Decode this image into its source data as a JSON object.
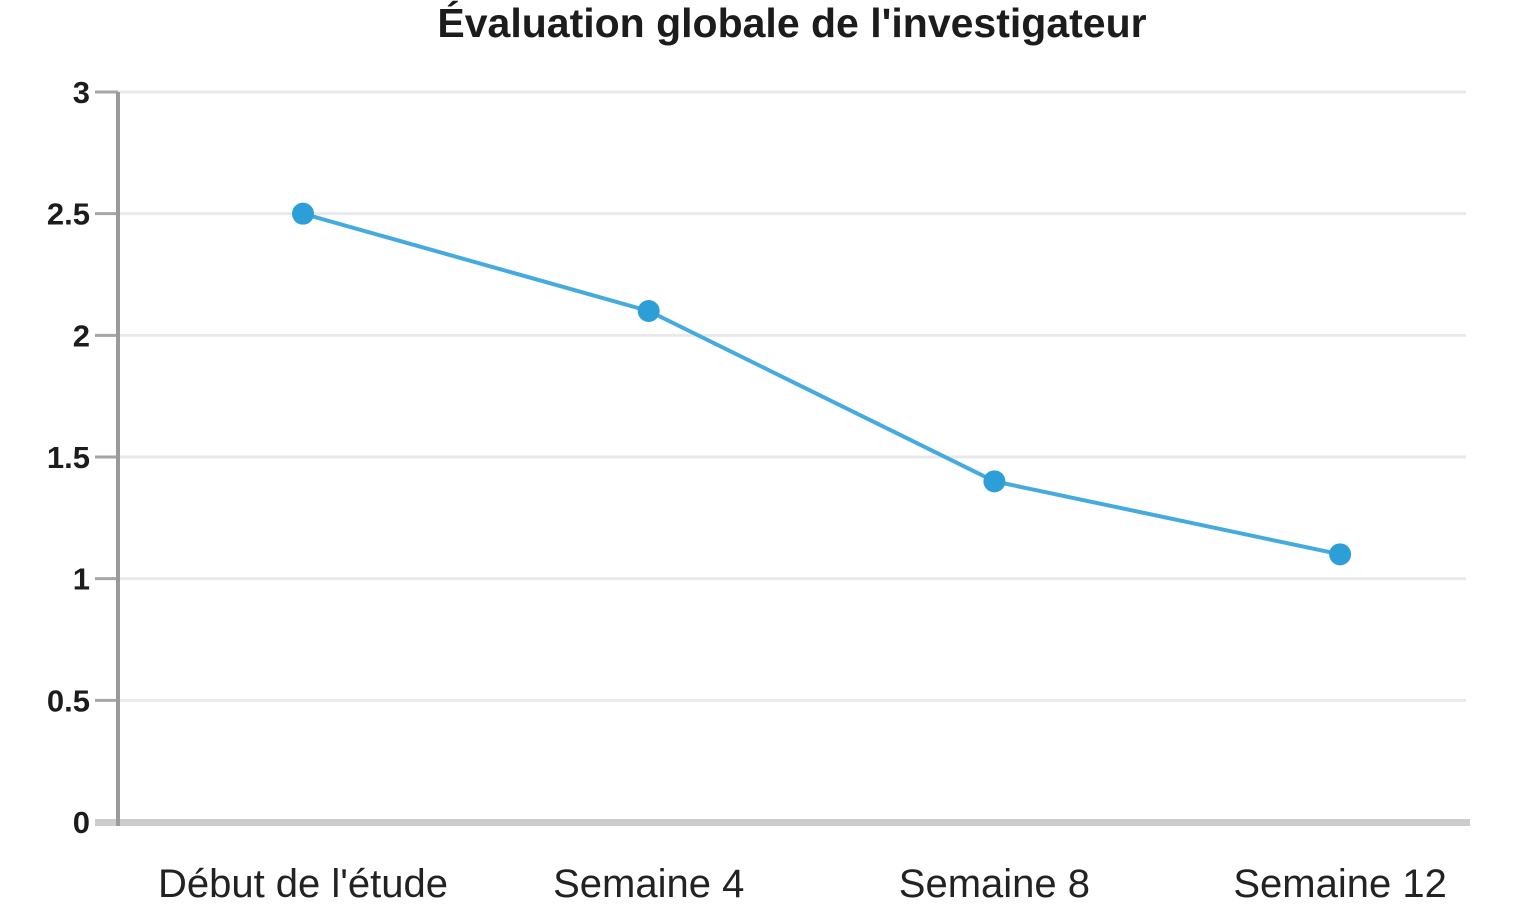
{
  "chart_data": {
    "type": "line",
    "title": "Évaluation globale de l'investigateur",
    "categories": [
      "Début de l'étude",
      "Semaine 4",
      "Semaine 8",
      "Semaine 12"
    ],
    "series": [
      {
        "name": "Évaluation globale de l'investigateur",
        "values": [
          2.5,
          2.1,
          1.4,
          1.1
        ]
      }
    ],
    "xlabel": "",
    "ylabel": "",
    "ylim": [
      0,
      3
    ],
    "ytick_values": [
      0,
      0.5,
      1,
      1.5,
      2,
      2.5,
      3
    ],
    "ytick_labels": [
      "0",
      "0.5",
      "1",
      "1.5",
      "2",
      "2.5",
      "3"
    ],
    "grid": "horizontal",
    "legend_position": "none",
    "colors": {
      "line": "#45abdf",
      "marker": "#2d9fd8",
      "gridline": "#e9e9e9",
      "y_axis": "#9a9a9a",
      "x_axis": "#cccccc",
      "tick": "#a6a6a6",
      "title_text": "#1c1c1c",
      "label_text": "#222222",
      "background": "#ffffff"
    }
  }
}
